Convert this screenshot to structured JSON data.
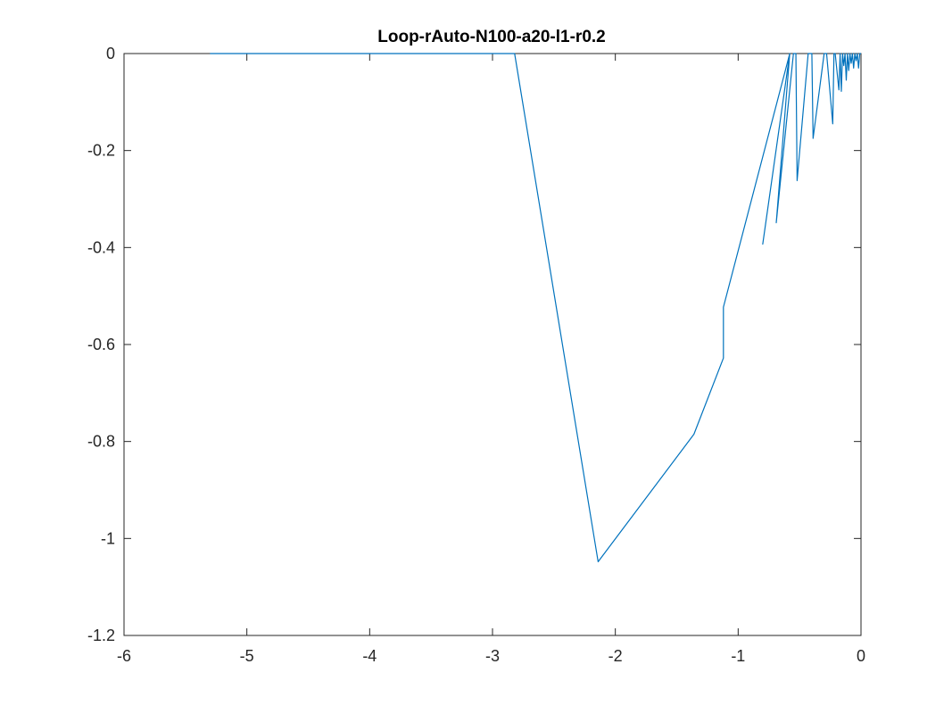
{
  "chart_data": {
    "type": "line",
    "title": "Loop-rAuto-N100-a20-l1-r0.2",
    "xlabel": "",
    "ylabel": "",
    "xlim": [
      -6,
      0
    ],
    "ylim": [
      -1.2,
      0
    ],
    "grid": false,
    "box": true,
    "xticks": [
      -6,
      -5,
      -4,
      -3,
      -2,
      -1,
      0
    ],
    "xtick_labels": [
      "-6",
      "-5",
      "-4",
      "-3",
      "-2",
      "-1",
      "0"
    ],
    "yticks": [
      -1.2,
      -1,
      -0.8,
      -0.6,
      -0.4,
      -0.2,
      0
    ],
    "ytick_labels": [
      "-1.2",
      "-1",
      "-0.8",
      "-0.6",
      "-0.4",
      "-0.2",
      "0"
    ],
    "series": [
      {
        "color": "#0072BD",
        "x": [
          -5.3,
          -2.82,
          -2.14,
          -1.36,
          -1.12,
          -1.12,
          -0.58,
          -0.8,
          -0.58,
          -0.69,
          -0.55,
          -0.53,
          -0.52,
          -0.43,
          -0.4,
          -0.39,
          -0.3,
          -0.28,
          -0.23,
          -0.22,
          -0.21,
          -0.18,
          -0.17,
          -0.16,
          -0.15,
          -0.14,
          -0.13,
          -0.12,
          -0.11,
          -0.1,
          -0.09,
          -0.08,
          -0.07,
          -0.06,
          -0.05,
          -0.04,
          -0.03,
          -0.02,
          -0.01,
          0.0
        ],
        "y": [
          0.0,
          0.0,
          -1.048,
          -0.785,
          -0.628,
          -0.523,
          0.0,
          -0.393,
          0.0,
          -0.349,
          0.0,
          0.0,
          -0.262,
          0.0,
          0.0,
          -0.175,
          0.0,
          0.0,
          -0.145,
          0.0,
          0.0,
          -0.075,
          0.0,
          -0.078,
          0.0,
          -0.025,
          0.0,
          -0.055,
          0.0,
          -0.035,
          0.0,
          -0.02,
          0.0,
          -0.03,
          0.0,
          -0.015,
          0.0,
          -0.03,
          0.0,
          0.0
        ]
      }
    ]
  }
}
